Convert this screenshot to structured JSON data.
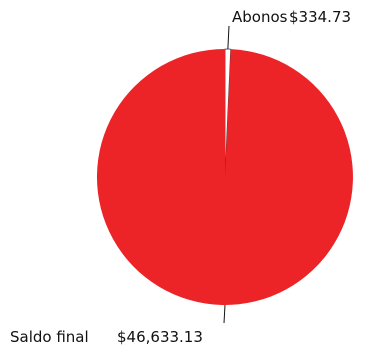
{
  "chart_data": {
    "type": "pie",
    "slices": [
      {
        "label": "Abonos",
        "value": 334.73,
        "display_value": "$334.73",
        "color": "#ffffff"
      },
      {
        "label": "Saldo final",
        "value": 46633.13,
        "display_value": "$46,633.13",
        "color": "#ec2327"
      }
    ],
    "title": "",
    "start_angle": "12 o'clock",
    "direction": "clockwise",
    "legend": "none",
    "outline_color": "#444444"
  }
}
